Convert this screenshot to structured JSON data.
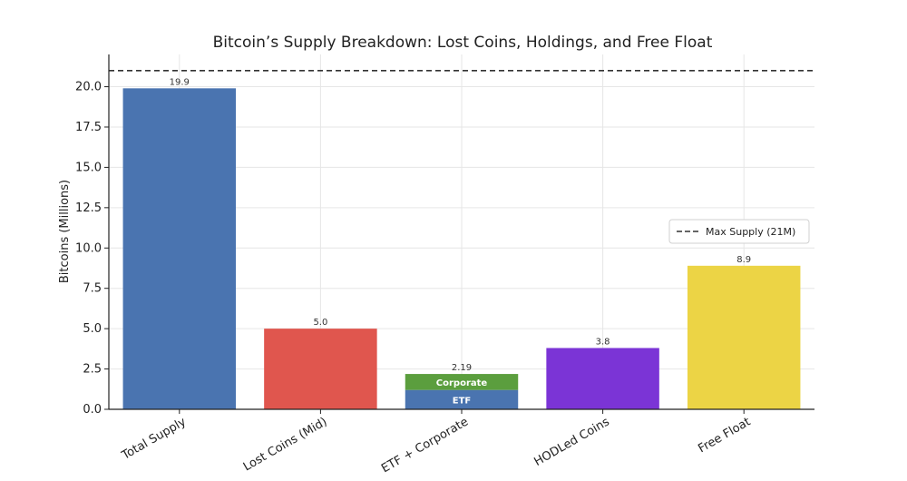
{
  "chart_data": {
    "type": "bar",
    "title": "Bitcoin’s Supply Breakdown: Lost Coins, Holdings, and Free Float",
    "xlabel": "",
    "ylabel": "Bitcoins (Millions)",
    "ylim": [
      0,
      22
    ],
    "yticks": [
      0.0,
      2.5,
      5.0,
      7.5,
      10.0,
      12.5,
      15.0,
      17.5,
      20.0
    ],
    "ytick_labels": [
      "0.0",
      "2.5",
      "5.0",
      "7.5",
      "10.0",
      "12.5",
      "15.0",
      "17.5",
      "20.0"
    ],
    "grid": true,
    "categories": [
      "Total Supply",
      "Lost Coins (Mid)",
      "ETF + Corporate",
      "HODLed Coins",
      "Free Float"
    ],
    "bars": [
      {
        "category": "Total Supply",
        "value": 19.9,
        "label": "19.9",
        "color": "#4a74b0"
      },
      {
        "category": "Lost Coins (Mid)",
        "value": 5.0,
        "label": "5.0",
        "color": "#e0564e"
      },
      {
        "category": "ETF + Corporate",
        "value": 2.19,
        "label": "2.19",
        "segments": [
          {
            "name": "ETF",
            "value": 1.2,
            "color": "#4a74b0"
          },
          {
            "name": "Corporate",
            "value": 0.99,
            "color": "#5b9e3e"
          }
        ]
      },
      {
        "category": "HODLed Coins",
        "value": 3.8,
        "label": "3.8",
        "color": "#7b34d6"
      },
      {
        "category": "Free Float",
        "value": 8.9,
        "label": "8.9",
        "color": "#ecd445"
      }
    ],
    "reference_lines": [
      {
        "y": 21,
        "style": "dashed",
        "color": "#333333",
        "legend": "Max Supply (21M)"
      }
    ],
    "legend_position": "center-right"
  }
}
